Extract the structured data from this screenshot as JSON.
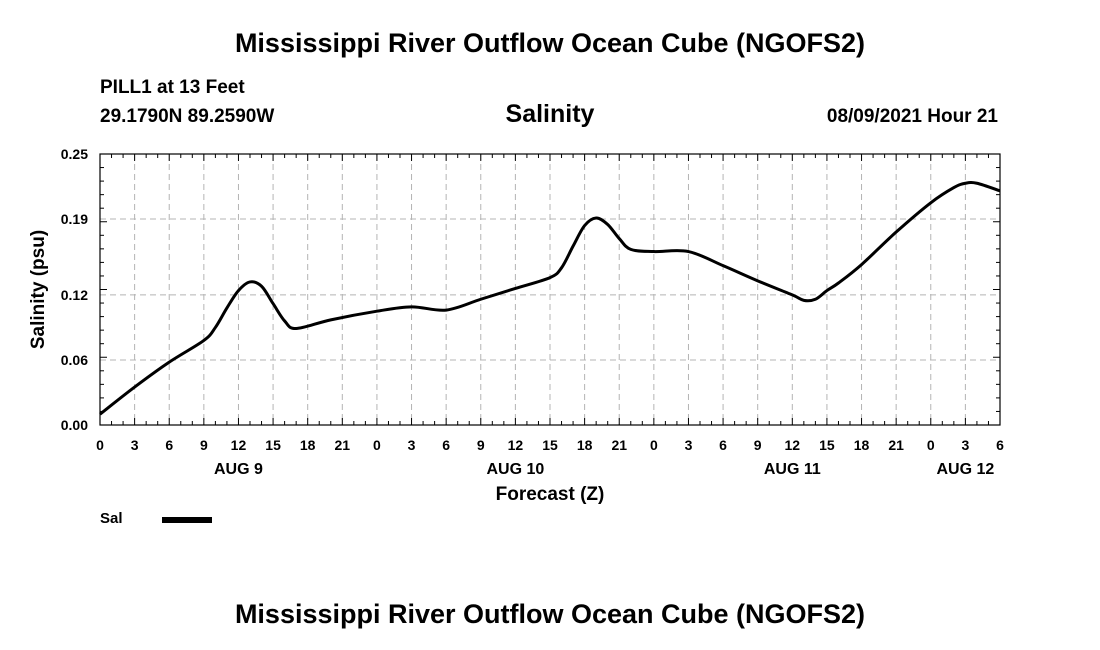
{
  "header": {
    "title": "Mississippi River Outflow Ocean Cube (NGOFS2)",
    "station": "PILL1 at 13 Feet",
    "coords": "29.1790N  89.2590W",
    "variable": "Salinity",
    "datetime": "08/09/2021 Hour 21"
  },
  "footer": {
    "title": "Mississippi River Outflow Ocean Cube (NGOFS2)"
  },
  "legend": {
    "label": "Sal",
    "color": "#000000"
  },
  "chart_data": {
    "type": "line",
    "title": "Salinity",
    "xlabel": "Forecast (Z)",
    "ylabel": "Salinity (psu)",
    "xlim": [
      0,
      78
    ],
    "ylim": [
      0.0,
      0.25
    ],
    "grid": true,
    "yticks": [
      0.0,
      0.06,
      0.12,
      0.19,
      0.25
    ],
    "ytick_labels": [
      "0.00",
      "0.06",
      "0.12",
      "0.19",
      "0.25"
    ],
    "xticks": [
      0,
      3,
      6,
      9,
      12,
      15,
      18,
      21,
      24,
      27,
      30,
      33,
      36,
      39,
      42,
      45,
      48,
      51,
      54,
      57,
      60,
      63,
      66,
      69,
      72,
      75,
      78
    ],
    "xtick_labels": [
      "0",
      "3",
      "6",
      "9",
      "12",
      "15",
      "18",
      "21",
      "0",
      "3",
      "6",
      "9",
      "12",
      "15",
      "18",
      "21",
      "0",
      "3",
      "6",
      "9",
      "12",
      "15",
      "18",
      "21",
      "0",
      "3",
      "6"
    ],
    "day_labels": [
      {
        "x": 12,
        "label": "AUG 9"
      },
      {
        "x": 36,
        "label": "AUG 10"
      },
      {
        "x": 60,
        "label": "AUG 11"
      },
      {
        "x": 75,
        "label": "AUG 12"
      }
    ],
    "series": [
      {
        "name": "Sal",
        "x": [
          0,
          3,
          6,
          9,
          10,
          11,
          12,
          13,
          14,
          15,
          16,
          17,
          20,
          24,
          27,
          30,
          33,
          36,
          39,
          40,
          41,
          42,
          43,
          44,
          45,
          46,
          48,
          51,
          54,
          57,
          60,
          61,
          62,
          63,
          64,
          66,
          69,
          72,
          74,
          75,
          76,
          78
        ],
        "y": [
          0.01,
          0.035,
          0.058,
          0.078,
          0.09,
          0.108,
          0.124,
          0.132,
          0.128,
          0.112,
          0.096,
          0.089,
          0.097,
          0.105,
          0.109,
          0.106,
          0.116,
          0.126,
          0.136,
          0.145,
          0.165,
          0.184,
          0.191,
          0.185,
          0.172,
          0.162,
          0.16,
          0.16,
          0.147,
          0.133,
          0.12,
          0.115,
          0.116,
          0.124,
          0.131,
          0.148,
          0.178,
          0.205,
          0.219,
          0.223,
          0.223,
          0.216
        ]
      }
    ]
  }
}
